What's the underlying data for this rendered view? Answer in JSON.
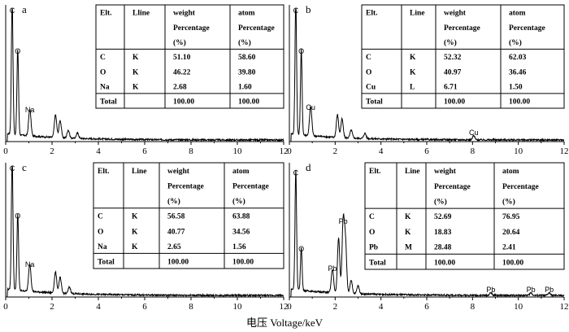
{
  "figure": {
    "xlabel": "电压 Voltage/keV"
  },
  "chart_data": [
    {
      "type": "line",
      "panel": "a",
      "xlim": [
        0,
        12
      ],
      "xticks": [
        "0",
        "2",
        "4",
        "6",
        "8",
        "10",
        "12"
      ],
      "peaks": [
        {
          "label": "C",
          "x": 0.28,
          "h": 1.0
        },
        {
          "label": "O",
          "x": 0.52,
          "h": 0.64
        },
        {
          "label": "Na",
          "x": 1.04,
          "h": 0.2
        }
      ],
      "minor_peaks": [
        [
          2.15,
          0.17
        ],
        [
          2.35,
          0.13
        ],
        [
          2.7,
          0.06
        ],
        [
          3.1,
          0.04
        ]
      ],
      "table": {
        "headers": [
          "Elt.",
          "Lline",
          "weight",
          "atom"
        ],
        "subheader": [
          "",
          "",
          "Percentage",
          "Percentage"
        ],
        "units": [
          "",
          "",
          "(%)",
          "(%)"
        ],
        "rows": [
          [
            "C",
            "K",
            "51.10",
            "58.60"
          ],
          [
            "O",
            "K",
            "46.22",
            "39.80"
          ],
          [
            "Na",
            "K",
            "2.68",
            "1.60"
          ],
          [
            "Total",
            "",
            "100.00",
            "100.00"
          ]
        ]
      }
    },
    {
      "type": "line",
      "panel": "b",
      "xlim": [
        0,
        12
      ],
      "xticks": [
        "0",
        "2",
        "4",
        "6",
        "8",
        "10",
        "12"
      ],
      "peaks": [
        {
          "label": "C",
          "x": 0.28,
          "h": 1.0
        },
        {
          "label": "O",
          "x": 0.52,
          "h": 0.64
        },
        {
          "label": "Cu",
          "x": 0.93,
          "h": 0.22
        },
        {
          "label": "Cu",
          "x": 8.05,
          "h": 0.03
        }
      ],
      "minor_peaks": [
        [
          2.1,
          0.17
        ],
        [
          2.3,
          0.14
        ],
        [
          2.7,
          0.06
        ],
        [
          3.3,
          0.04
        ]
      ],
      "table": {
        "headers": [
          "Elt.",
          "Line",
          "weight",
          "atom"
        ],
        "subheader": [
          "",
          "",
          "Percentage",
          "Percentage"
        ],
        "units": [
          "",
          "",
          "(%)",
          "(%)"
        ],
        "rows": [
          [
            "C",
            "K",
            "52.32",
            "62.03"
          ],
          [
            "O",
            "K",
            "40.97",
            "36.46"
          ],
          [
            "Cu",
            "L",
            "6.71",
            "1.50"
          ],
          [
            "Total",
            "",
            "100.00",
            "100.00"
          ]
        ]
      }
    },
    {
      "type": "line",
      "panel": "c",
      "xlim": [
        0,
        12
      ],
      "xticks": [
        "0",
        "2",
        "4",
        "6",
        "8",
        "10",
        "12"
      ],
      "peaks": [
        {
          "label": "C",
          "x": 0.28,
          "h": 1.0
        },
        {
          "label": "O",
          "x": 0.52,
          "h": 0.58
        },
        {
          "label": "Na",
          "x": 1.04,
          "h": 0.21
        }
      ],
      "minor_peaks": [
        [
          2.15,
          0.16
        ],
        [
          2.35,
          0.12
        ],
        [
          2.75,
          0.05
        ]
      ],
      "table": {
        "headers": [
          "Elt.",
          "Line",
          "weight",
          "atom"
        ],
        "subheader": [
          "",
          "",
          "Percentage",
          "Percentage"
        ],
        "units": [
          "",
          "",
          "(%)",
          "(%)"
        ],
        "rows": [
          [
            "C",
            "K",
            "56.58",
            "63.88"
          ],
          [
            "O",
            "K",
            "40.77",
            "34.56"
          ],
          [
            "Na",
            "K",
            "2.65",
            "1.56"
          ],
          [
            "Total",
            "",
            "100.00",
            "100.00"
          ]
        ]
      }
    },
    {
      "type": "line",
      "panel": "d",
      "xlim": [
        0,
        12
      ],
      "xticks": [
        "0",
        "2",
        "4",
        "6",
        "8",
        "10",
        "12"
      ],
      "peaks": [
        {
          "label": "C",
          "x": 0.28,
          "h": 0.91
        },
        {
          "label": "O",
          "x": 0.52,
          "h": 0.33
        },
        {
          "label": "Pb",
          "x": 1.88,
          "h": 0.18
        },
        {
          "label": "Pb",
          "x": 2.35,
          "h": 0.54
        },
        {
          "label": "Pb",
          "x": 8.8,
          "h": 0.02
        },
        {
          "label": "Pb",
          "x": 10.55,
          "h": 0.02
        },
        {
          "label": "Pb",
          "x": 11.35,
          "h": 0.02
        }
      ],
      "minor_peaks": [
        [
          2.15,
          0.42
        ],
        [
          2.45,
          0.38
        ],
        [
          2.7,
          0.1
        ],
        [
          3.0,
          0.06
        ]
      ],
      "table": {
        "headers": [
          "Elt.",
          "Line",
          "weight",
          "atom"
        ],
        "subheader": [
          "",
          "",
          "Percentage",
          "Percentage"
        ],
        "units": [
          "",
          "",
          "(%)",
          "(%)"
        ],
        "rows": [
          [
            "C",
            "K",
            "52.69",
            "76.95"
          ],
          [
            "O",
            "K",
            "18.83",
            "20.64"
          ],
          [
            "Pb",
            "M",
            "28.48",
            "2.41"
          ],
          [
            "Total",
            "",
            "100.00",
            "100.00"
          ]
        ]
      }
    }
  ]
}
